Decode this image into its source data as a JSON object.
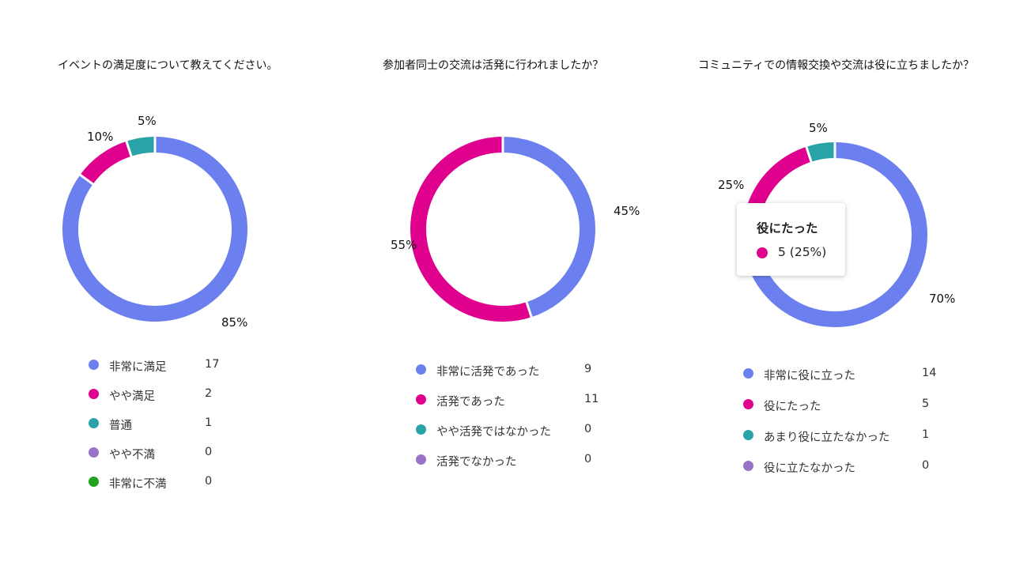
{
  "colors": {
    "very": "#6b80ee",
    "mid": "#df008e",
    "neutral": "#2aa3a8",
    "low": "#9a73c8",
    "verylow": "#23a11f"
  },
  "chart_data": [
    {
      "type": "pie",
      "title": "イベントの満足度について教えてください。",
      "categories": [
        "非常に満足",
        "やや満足",
        "普通",
        "やや不満",
        "非常に不満"
      ],
      "values": [
        17,
        2,
        1,
        0,
        0
      ],
      "percent_labels": [
        "85%",
        "10%",
        "5%"
      ],
      "legend": "bottom"
    },
    {
      "type": "pie",
      "title": "参加者同士の交流は活発に行われましたか？",
      "categories": [
        "非常に活発であった",
        "活発であった",
        "やや活発ではなかった",
        "活発でなかった"
      ],
      "values": [
        9,
        11,
        0,
        0
      ],
      "percent_labels": [
        "45%",
        "55%"
      ],
      "legend": "bottom"
    },
    {
      "type": "pie",
      "title": "コミュニティでの情報交換や交流は役に立ちましたか？",
      "categories": [
        "非常に役に立った",
        "役にたった",
        "あまり役に立たなかった",
        "役に立たなかった"
      ],
      "values": [
        14,
        5,
        1,
        0
      ],
      "percent_labels": [
        "70%",
        "25%",
        "5%"
      ],
      "legend": "bottom",
      "tooltip": {
        "title": "役にたった",
        "value": "5 (25%)"
      }
    }
  ]
}
